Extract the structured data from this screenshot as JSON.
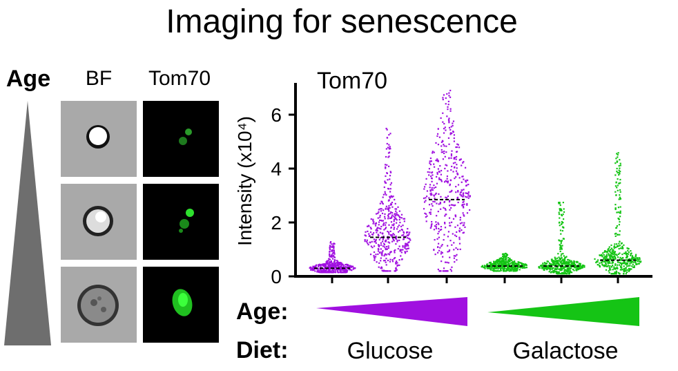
{
  "title": "Imaging for senescence",
  "left_panel": {
    "age_label": "Age",
    "columns": [
      "BF",
      "Tom70"
    ],
    "rows": 3,
    "age_triangle_color": "#6e6e6e",
    "fluorescence_color": "#1fdc1f"
  },
  "chart_data": {
    "type": "scatter",
    "subtype": "dot-plot",
    "title": "Tom70",
    "ylabel": "Intensity (x10⁴)",
    "ylim": [
      0,
      7
    ],
    "yticks": [
      0,
      2,
      4,
      6
    ],
    "groups": [
      {
        "diet": "Glucose",
        "age_order": 1,
        "color": "#a010e0",
        "median": 0.3,
        "min": 0.15,
        "max": 1.3
      },
      {
        "diet": "Glucose",
        "age_order": 2,
        "color": "#a010e0",
        "median": 1.45,
        "min": 0.2,
        "max": 5.5
      },
      {
        "diet": "Glucose",
        "age_order": 3,
        "color": "#a010e0",
        "median": 2.85,
        "min": 0.2,
        "max": 6.9
      },
      {
        "diet": "Galactose",
        "age_order": 1,
        "color": "#15c415",
        "median": 0.38,
        "min": 0.2,
        "max": 0.85
      },
      {
        "diet": "Galactose",
        "age_order": 2,
        "color": "#15c415",
        "median": 0.38,
        "min": 0.1,
        "max": 2.8
      },
      {
        "diet": "Galactose",
        "age_order": 3,
        "color": "#15c415",
        "median": 0.6,
        "min": 0.1,
        "max": 4.6
      }
    ],
    "row_labels": {
      "age": "Age:",
      "diet": "Diet:"
    },
    "diet_labels": [
      "Glucose",
      "Galactose"
    ],
    "colors": {
      "glucose": "#a010e0",
      "galactose": "#15c415"
    }
  }
}
